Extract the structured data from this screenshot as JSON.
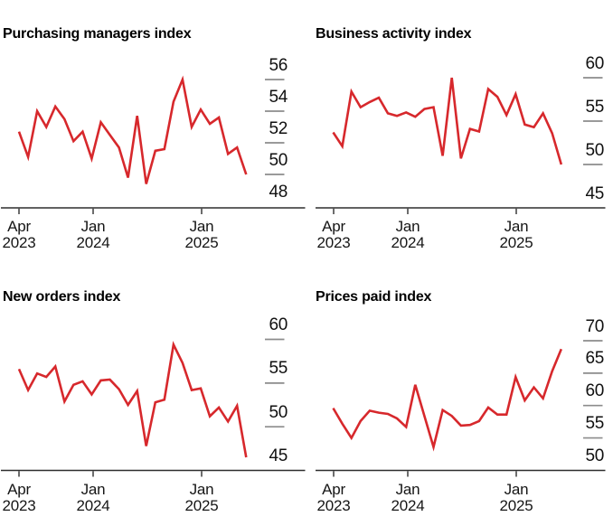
{
  "page": {
    "background": "#ffffff",
    "accent_red": "#d7282c",
    "axis_color": "#2e2e2e",
    "tick_dash_color": "#8c8c8c"
  },
  "chart_data": [
    {
      "type": "line",
      "title": "Purchasing managers index",
      "frequency": "monthly",
      "categories": [
        "Apr 2023",
        "May 2023",
        "Jun 2023",
        "Jul 2023",
        "Aug 2023",
        "Sep 2023",
        "Oct 2023",
        "Nov 2023",
        "Dec 2023",
        "Jan 2024",
        "Feb 2024",
        "Mar 2024",
        "Apr 2024",
        "May 2024",
        "Jun 2024",
        "Jul 2024",
        "Aug 2024",
        "Sep 2024",
        "Oct 2024",
        "Nov 2024",
        "Dec 2024",
        "Jan 2025",
        "Feb 2025",
        "Mar 2025",
        "Apr 2025",
        "May 2025"
      ],
      "values": [
        52.7,
        51.1,
        54.0,
        53.0,
        54.3,
        53.5,
        52.1,
        52.7,
        51.0,
        53.3,
        52.5,
        51.7,
        49.8,
        53.7,
        49.4,
        51.5,
        51.6,
        54.6,
        56.0,
        53.0,
        54.1,
        53.2,
        53.6,
        51.3,
        51.7,
        50.0
      ],
      "ylim": [
        48,
        56
      ],
      "y_tick_labels": [
        56,
        54,
        52,
        50,
        48
      ],
      "x_tick_labels": [
        [
          "Apr",
          "2023"
        ],
        [
          "Jan",
          "2024"
        ],
        [
          "Jan",
          "2025"
        ]
      ],
      "legend": "none",
      "grid": "off",
      "line_color": "#d7282c"
    },
    {
      "type": "line",
      "title": "Business activity index",
      "frequency": "monthly",
      "categories": [
        "Apr 2023",
        "May 2023",
        "Jun 2023",
        "Jul 2023",
        "Aug 2023",
        "Sep 2023",
        "Oct 2023",
        "Nov 2023",
        "Dec 2023",
        "Jan 2024",
        "Feb 2024",
        "Mar 2024",
        "Apr 2024",
        "May 2024",
        "Jun 2024",
        "Jul 2024",
        "Aug 2024",
        "Sep 2024",
        "Oct 2024",
        "Nov 2024",
        "Dec 2024",
        "Jan 2025",
        "Feb 2025",
        "Mar 2025",
        "Apr 2025",
        "May 2025"
      ],
      "values": [
        53.7,
        52.1,
        58.4,
        56.6,
        57.2,
        57.7,
        55.9,
        55.6,
        56.0,
        55.5,
        56.4,
        56.6,
        51.0,
        60.0,
        50.7,
        54.1,
        53.8,
        58.7,
        57.8,
        55.7,
        58.1,
        54.6,
        54.3,
        55.9,
        53.6,
        50.0
      ],
      "ylim": [
        45,
        60
      ],
      "y_tick_labels": [
        60,
        55,
        50,
        45
      ],
      "x_tick_labels": [
        [
          "Apr",
          "2023"
        ],
        [
          "Jan",
          "2024"
        ],
        [
          "Jan",
          "2025"
        ]
      ],
      "legend": "none",
      "grid": "off",
      "line_color": "#d7282c"
    },
    {
      "type": "line",
      "title": "New orders index",
      "frequency": "monthly",
      "categories": [
        "Apr 2023",
        "May 2023",
        "Jun 2023",
        "Jul 2023",
        "Aug 2023",
        "Sep 2023",
        "Oct 2023",
        "Nov 2023",
        "Dec 2023",
        "Jan 2024",
        "Feb 2024",
        "Mar 2024",
        "Apr 2024",
        "May 2024",
        "Jun 2024",
        "Jul 2024",
        "Aug 2024",
        "Sep 2024",
        "Oct 2024",
        "Nov 2024",
        "Dec 2024",
        "Jan 2025",
        "Feb 2025",
        "Mar 2025",
        "Apr 2025",
        "May 2025"
      ],
      "values": [
        56.6,
        54.2,
        56.1,
        55.7,
        56.9,
        52.9,
        54.8,
        55.2,
        53.7,
        55.3,
        55.4,
        54.3,
        52.5,
        54.1,
        47.8,
        52.8,
        53.1,
        59.4,
        57.3,
        54.2,
        54.4,
        51.2,
        52.2,
        50.6,
        52.4,
        46.5
      ],
      "ylim": [
        45,
        60
      ],
      "y_tick_labels": [
        60,
        55,
        50,
        45
      ],
      "x_tick_labels": [
        [
          "Apr",
          "2023"
        ],
        [
          "Jan",
          "2024"
        ],
        [
          "Jan",
          "2025"
        ]
      ],
      "legend": "none",
      "grid": "off",
      "line_color": "#d7282c"
    },
    {
      "type": "line",
      "title": "Prices paid index",
      "frequency": "monthly",
      "categories": [
        "Apr 2023",
        "May 2023",
        "Jun 2023",
        "Jul 2023",
        "Aug 2023",
        "Sep 2023",
        "Oct 2023",
        "Nov 2023",
        "Dec 2023",
        "Jan 2024",
        "Feb 2024",
        "Mar 2024",
        "Apr 2024",
        "May 2024",
        "Jun 2024",
        "Jul 2024",
        "Aug 2024",
        "Sep 2024",
        "Oct 2024",
        "Nov 2024",
        "Dec 2024",
        "Jan 2025",
        "Feb 2025",
        "Mar 2025",
        "Apr 2025",
        "May 2025"
      ],
      "values": [
        59.6,
        57.2,
        55.0,
        57.6,
        59.2,
        58.9,
        58.7,
        58.0,
        56.7,
        63.2,
        58.4,
        53.6,
        59.3,
        58.4,
        56.9,
        57.0,
        57.6,
        59.7,
        58.6,
        58.6,
        64.4,
        60.8,
        62.8,
        61.1,
        65.3,
        68.7
      ],
      "ylim": [
        50,
        70
      ],
      "y_tick_labels": [
        70,
        65,
        60,
        55,
        50
      ],
      "x_tick_labels": [
        [
          "Apr",
          "2023"
        ],
        [
          "Jan",
          "2024"
        ],
        [
          "Jan",
          "2025"
        ]
      ],
      "legend": "none",
      "grid": "off",
      "line_color": "#d7282c"
    }
  ]
}
